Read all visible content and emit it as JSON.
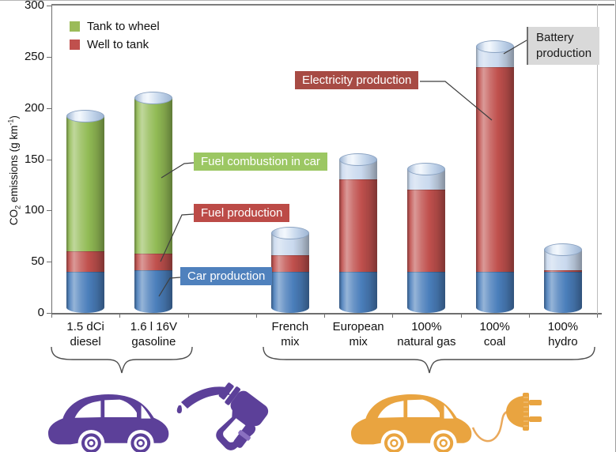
{
  "chart_data": {
    "type": "bar",
    "stacked": true,
    "title": "",
    "ylabel": {
      "pre": "CO",
      "sub": "2",
      "mid": " emissions (g km",
      "sup": "-1",
      "post": ")"
    },
    "ylim": [
      0,
      300
    ],
    "yticks": [
      0,
      50,
      100,
      150,
      200,
      250,
      300
    ],
    "grid": false,
    "legend_position": "top-left-inside",
    "categories": [
      {
        "line1": "1.5 dCi",
        "line2": "diesel",
        "slot": 0,
        "group": "combustion"
      },
      {
        "line1": "1.6 l 16V",
        "line2": "gasoline",
        "slot": 1,
        "group": "combustion"
      },
      {
        "line1": "French",
        "line2": "mix",
        "slot": 3,
        "group": "electric"
      },
      {
        "line1": "European",
        "line2": "mix",
        "slot": 4,
        "group": "electric"
      },
      {
        "line1": "100%",
        "line2": "natural gas",
        "slot": 5,
        "group": "electric"
      },
      {
        "line1": "100%",
        "line2": "coal",
        "slot": 6,
        "group": "electric"
      },
      {
        "line1": "100%",
        "line2": "hydro",
        "slot": 7,
        "group": "electric"
      }
    ],
    "series": [
      {
        "name": "Car production",
        "color": "#4a7ebb",
        "values": [
          40,
          42,
          40,
          40,
          40,
          40,
          40
        ]
      },
      {
        "name": "Well to tank (fuel / electricity production)",
        "color": "#c0504d",
        "values": [
          20,
          16,
          16,
          90,
          80,
          200,
          2
        ]
      },
      {
        "name": "Tank to wheel (fuel combustion in car)",
        "color": "#92bb55",
        "values": [
          132,
          152,
          0,
          0,
          0,
          0,
          0
        ]
      },
      {
        "name": "Battery production",
        "color": "#c9d9ee",
        "values": [
          0,
          0,
          22,
          20,
          20,
          20,
          20
        ]
      }
    ],
    "totals": [
      192,
      210,
      78,
      150,
      140,
      260,
      62
    ],
    "legend": [
      {
        "label": "Tank to wheel",
        "color": "#9bbb59"
      },
      {
        "label": "Well to tank",
        "color": "#c0504d"
      }
    ]
  },
  "annotations": {
    "fuel_combustion": {
      "text": "Fuel combustion in car",
      "bg": "#9cc763",
      "fg": "#ffffff"
    },
    "fuel_production": {
      "text": "Fuel production",
      "bg": "#bc4b47",
      "fg": "#ffffff"
    },
    "car_production": {
      "text": "Car production",
      "bg": "#4f81bd",
      "fg": "#ffffff"
    },
    "electricity_production": {
      "text": "Electricity production",
      "bg": "#a74b44",
      "fg": "#ffffff"
    },
    "battery_production": {
      "line1": "Battery",
      "line2": "production",
      "bg": "#d9d9d9",
      "fg": "#1a1a1a"
    }
  },
  "icons": {
    "combustion_group_color": "#5c4099",
    "electric_group_color": "#e9a440",
    "combustion_icons": [
      "car-silhouette",
      "fuel-nozzle"
    ],
    "electric_icons": [
      "car-silhouette",
      "power-plug-with-cable"
    ]
  }
}
